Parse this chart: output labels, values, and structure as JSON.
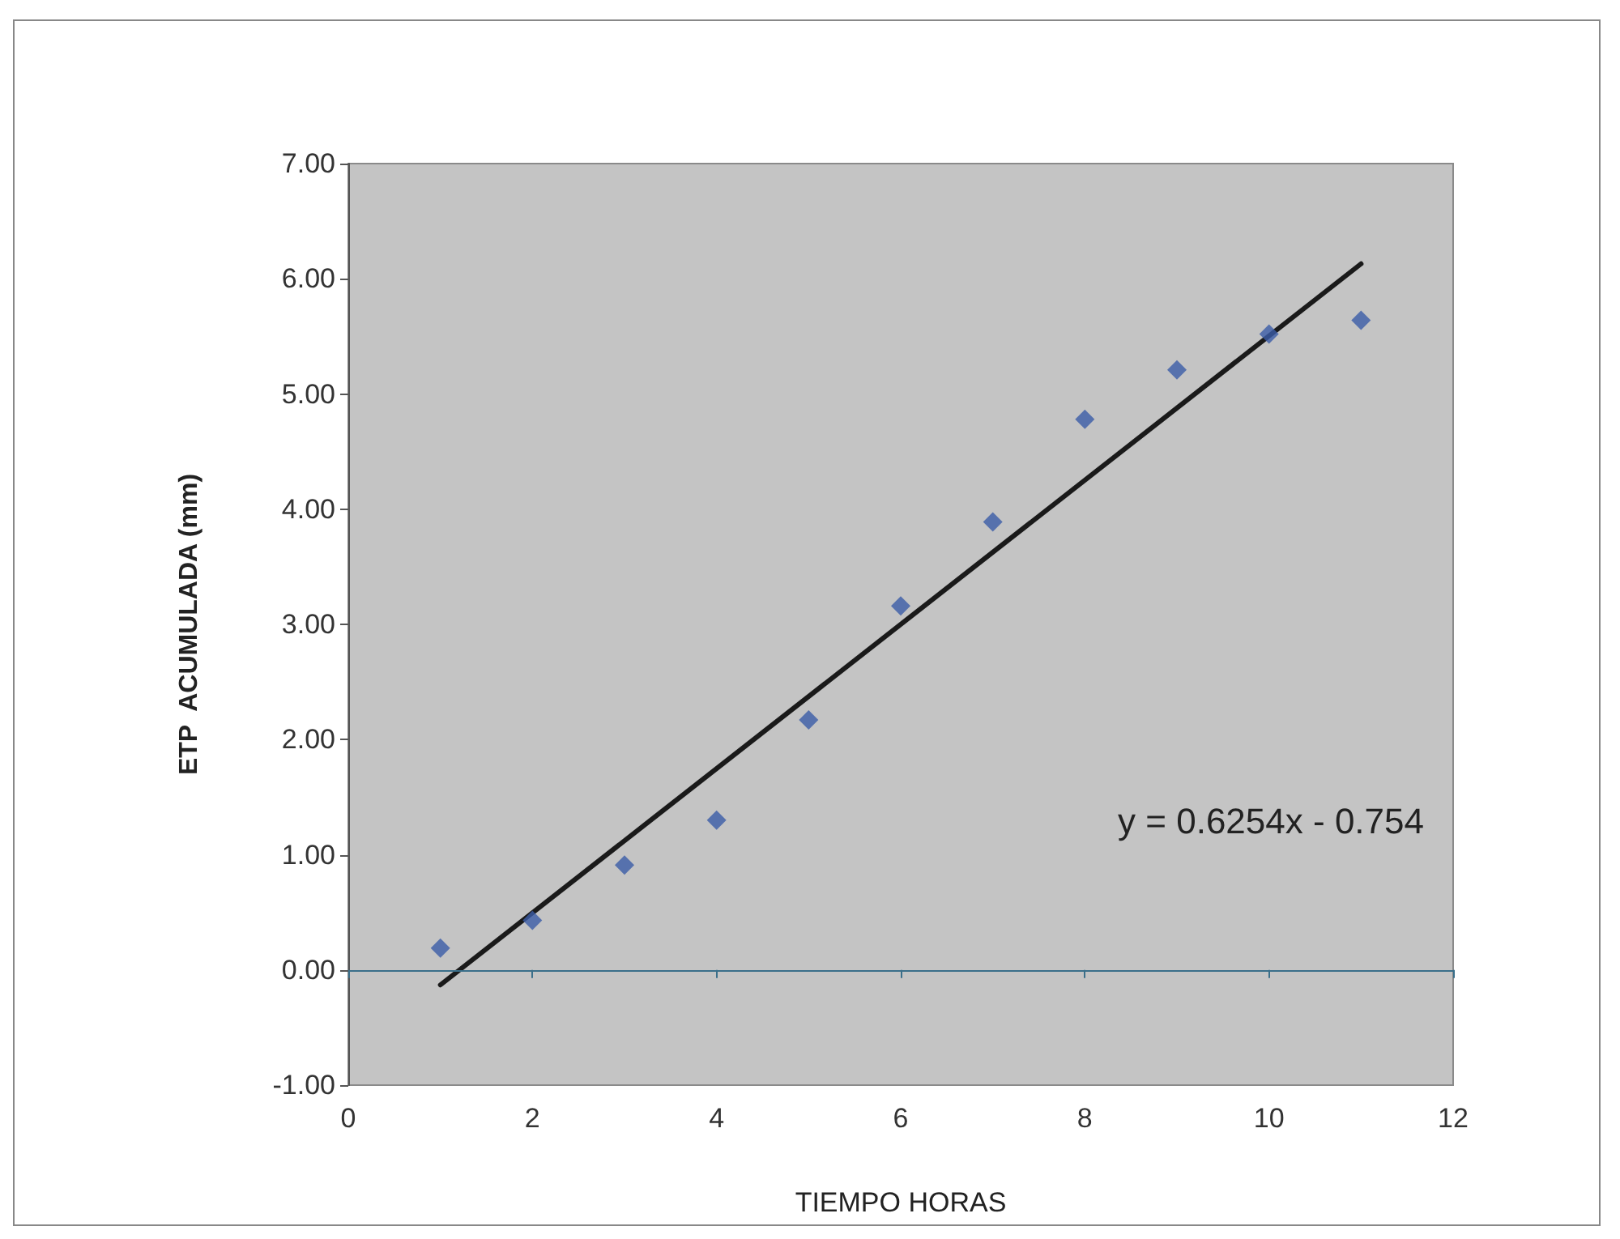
{
  "chart_data": {
    "type": "scatter",
    "xlabel": "TIEMPO HORAS",
    "ylabel": "ETP  ACUMULADA (mm)",
    "x": [
      1,
      2,
      3,
      4,
      5,
      6,
      7,
      8,
      9,
      10,
      11
    ],
    "series": [
      {
        "color": "#3b5ca8",
        "marker": "diamond",
        "values": [
          0.19,
          0.43,
          0.91,
          1.3,
          2.17,
          3.16,
          3.89,
          4.78,
          5.21,
          5.52,
          5.64
        ]
      },
      {
        "type": "line",
        "color": "#1a1a1a",
        "marker": "none",
        "line_style": "solid",
        "x": [
          1,
          11
        ],
        "values": [
          -0.13,
          6.13
        ]
      }
    ],
    "xlim": [
      0,
      12
    ],
    "xticks": [
      0,
      2,
      4,
      6,
      8,
      10,
      12
    ],
    "ylim": [
      -1,
      7
    ],
    "yticks": [
      {
        "value": -1,
        "label": "-1.00"
      },
      {
        "value": 0,
        "label": "0.00"
      },
      {
        "value": 1,
        "label": "1.00"
      },
      {
        "value": 2,
        "label": "2.00"
      },
      {
        "value": 3,
        "label": "3.00"
      },
      {
        "value": 4,
        "label": "4.00"
      },
      {
        "value": 5,
        "label": "5.00"
      },
      {
        "value": 6,
        "label": "6.00"
      },
      {
        "value": 7,
        "label": "7.00"
      }
    ],
    "ref_lines": [
      {
        "axis": "y",
        "value": 0,
        "color": "#3a6f8a"
      }
    ],
    "annotations": [
      "y = 0.6254x - 0.754"
    ],
    "grid": false
  }
}
